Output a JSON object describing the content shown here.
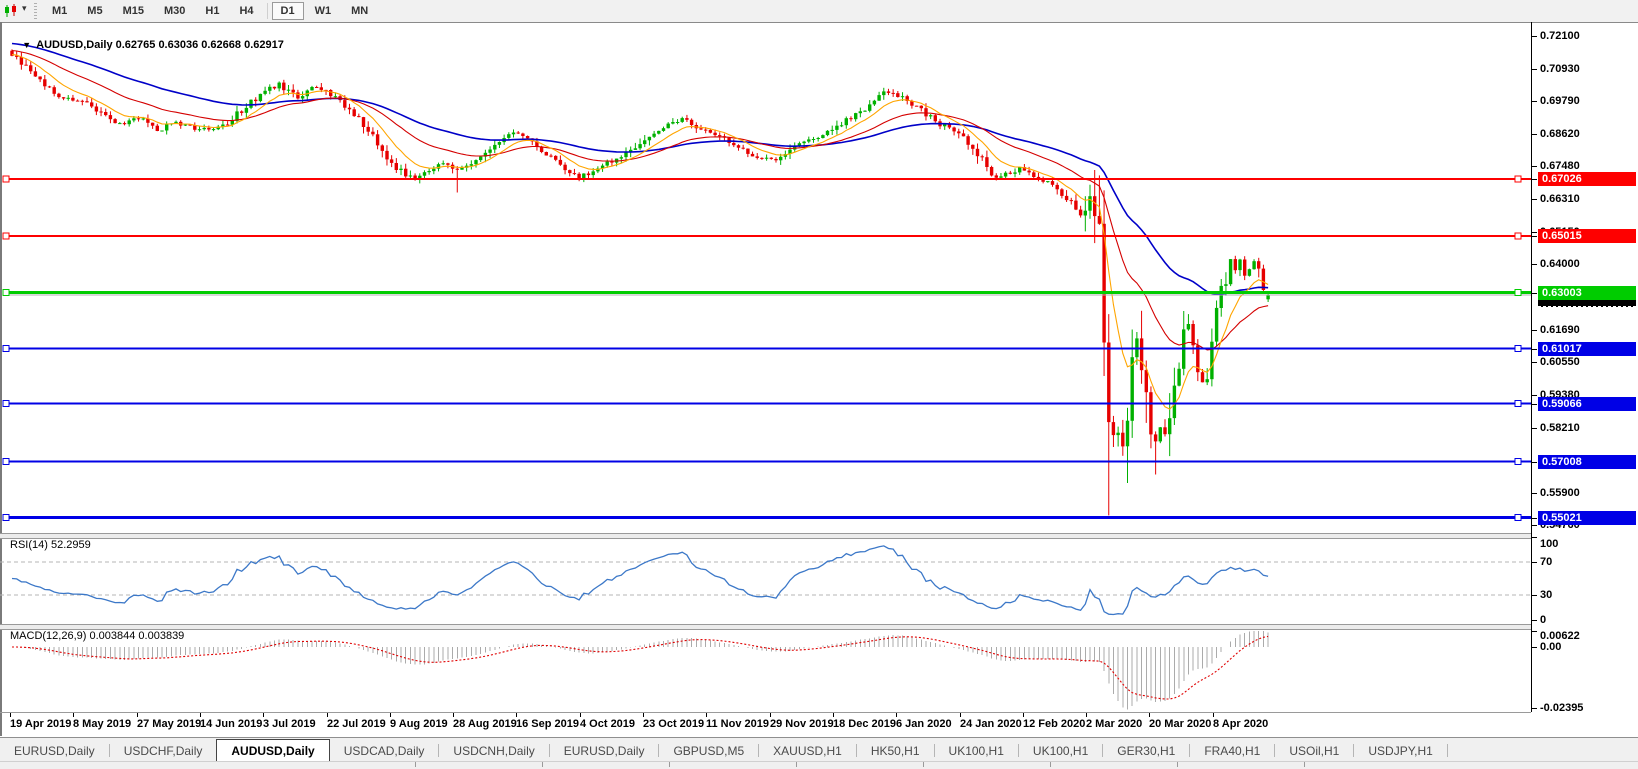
{
  "toolbar": {
    "chart_type_icon": "candlestick-chart-icon",
    "dropdown_glyph": "▾",
    "timeframes": [
      "M1",
      "M5",
      "M15",
      "M30",
      "H1",
      "H4",
      "D1",
      "W1",
      "MN"
    ],
    "active_timeframe": "D1"
  },
  "chart": {
    "title": {
      "marker": "▼",
      "symbol": "AUDUSD,Daily",
      "ohlc": "0.62765 0.63036 0.62668 0.62917"
    },
    "price_axis_labels": [
      "0.72100",
      "0.70930",
      "0.69790",
      "0.68620",
      "0.67480",
      "0.66310",
      "0.65150",
      "0.64000",
      "0.61690",
      "0.60550",
      "0.59380",
      "0.58210",
      "0.55900",
      "0.54760"
    ],
    "hlines": [
      {
        "label": "0.67026",
        "price": 0.67026,
        "color": "#fe0000",
        "thickness": 2
      },
      {
        "label": "0.65015",
        "price": 0.65015,
        "color": "#fe0000",
        "thickness": 2
      },
      {
        "label": "0.63003",
        "price": 0.63003,
        "color": "#00cc00",
        "thickness": 3
      },
      {
        "label": "0.61017",
        "price": 0.61017,
        "color": "#0000e6",
        "thickness": 2
      },
      {
        "label": "0.59066",
        "price": 0.59066,
        "color": "#0000e6",
        "thickness": 2
      },
      {
        "label": "0.57008",
        "price": 0.57008,
        "color": "#0000e6",
        "thickness": 2
      },
      {
        "label": "0.55021",
        "price": 0.55021,
        "color": "#0000e6",
        "thickness": 3
      }
    ],
    "date_axis_labels": [
      "19 Apr 2019",
      "8 May 2019",
      "27 May 2019",
      "14 Jun 2019",
      "3 Jul 2019",
      "22 Jul 2019",
      "9 Aug 2019",
      "28 Aug 2019",
      "16 Sep 2019",
      "4 Oct 2019",
      "23 Oct 2019",
      "11 Nov 2019",
      "29 Nov 2019",
      "18 Dec 2019",
      "6 Jan 2020",
      "24 Jan 2020",
      "12 Feb 2020",
      "2 Mar 2020",
      "20 Mar 2020",
      "8 Apr 2020"
    ]
  },
  "rsi_panel": {
    "name": "RSI(14)",
    "value": "52.2959",
    "axis_labels": [
      "100",
      "70",
      "30",
      "0"
    ],
    "level_lines": [
      70,
      30
    ],
    "line_color": "#3c78c8"
  },
  "macd_panel": {
    "name": "MACD(12,26,9)",
    "values": "0.003844 0.003839",
    "axis_labels": [
      "0.00622",
      "0.00",
      "-0.02395"
    ],
    "histogram_color": "#ababab",
    "signal_color": "#e00000"
  },
  "tabs": {
    "items": [
      "EURUSD,Daily",
      "USDCHF,Daily",
      "AUDUSD,Daily",
      "USDCAD,Daily",
      "USDCNH,Daily",
      "EURUSD,Daily",
      "GBPUSD,M5",
      "XAUUSD,H1",
      "HK50,H1",
      "UK100,H1",
      "UK100,H1",
      "GER30,H1",
      "FRA40,H1",
      "USOil,H1",
      "USDJPY,H1"
    ],
    "active_index": 2
  },
  "chart_data": {
    "type": "candlestick",
    "symbol": "AUDUSD",
    "timeframe": "Daily",
    "title": "AUDUSD,Daily",
    "visible_range": {
      "price_min": 0.5476,
      "price_max": 0.721,
      "date_start": "19 Apr 2019",
      "date_end": "8 Apr 2020"
    },
    "y_ticks": [
      0.721,
      0.7093,
      0.6979,
      0.6862,
      0.6748,
      0.6631,
      0.6515,
      0.64,
      0.6169,
      0.6055,
      0.5938,
      0.5821,
      0.559,
      0.5476
    ],
    "x_ticks": [
      "19 Apr 2019",
      "8 May 2019",
      "27 May 2019",
      "14 Jun 2019",
      "3 Jul 2019",
      "22 Jul 2019",
      "9 Aug 2019",
      "28 Aug 2019",
      "16 Sep 2019",
      "4 Oct 2019",
      "23 Oct 2019",
      "11 Nov 2019",
      "29 Nov 2019",
      "18 Dec 2019",
      "6 Jan 2020",
      "24 Jan 2020",
      "12 Feb 2020",
      "2 Mar 2020",
      "20 Mar 2020",
      "8 Apr 2020"
    ],
    "days": 268,
    "last_candle": {
      "o": 0.62765,
      "h": 0.63036,
      "l": 0.62668,
      "c": 0.62917
    },
    "current_price": 0.62917,
    "price_path": [
      [
        0,
        0.714
      ],
      [
        3,
        0.7095
      ],
      [
        7,
        0.703
      ],
      [
        11,
        0.699
      ],
      [
        15,
        0.6975
      ],
      [
        19,
        0.6935
      ],
      [
        23,
        0.6895
      ],
      [
        27,
        0.692
      ],
      [
        31,
        0.6875
      ],
      [
        35,
        0.6905
      ],
      [
        40,
        0.6875
      ],
      [
        45,
        0.689
      ],
      [
        50,
        0.696
      ],
      [
        54,
        0.7015
      ],
      [
        57,
        0.704
      ],
      [
        61,
        0.699
      ],
      [
        65,
        0.703
      ],
      [
        69,
        0.699
      ],
      [
        73,
        0.693
      ],
      [
        77,
        0.686
      ],
      [
        80,
        0.678
      ],
      [
        83,
        0.673
      ],
      [
        86,
        0.67
      ],
      [
        89,
        0.674
      ],
      [
        92,
        0.676
      ],
      [
        95,
        0.673
      ],
      [
        99,
        0.676
      ],
      [
        103,
        0.6815
      ],
      [
        107,
        0.6865
      ],
      [
        110,
        0.6845
      ],
      [
        114,
        0.679
      ],
      [
        118,
        0.6745
      ],
      [
        121,
        0.671
      ],
      [
        124,
        0.673
      ],
      [
        128,
        0.6765
      ],
      [
        132,
        0.68
      ],
      [
        136,
        0.685
      ],
      [
        140,
        0.689
      ],
      [
        143,
        0.6915
      ],
      [
        147,
        0.688
      ],
      [
        151,
        0.685
      ],
      [
        155,
        0.681
      ],
      [
        159,
        0.6785
      ],
      [
        163,
        0.6775
      ],
      [
        167,
        0.682
      ],
      [
        171,
        0.6845
      ],
      [
        175,
        0.688
      ],
      [
        179,
        0.6925
      ],
      [
        183,
        0.6965
      ],
      [
        187,
        0.7015
      ],
      [
        190,
        0.6995
      ],
      [
        194,
        0.6945
      ],
      [
        198,
        0.69
      ],
      [
        202,
        0.686
      ],
      [
        206,
        0.679
      ],
      [
        209,
        0.671
      ],
      [
        212,
        0.672
      ],
      [
        215,
        0.674
      ],
      [
        219,
        0.671
      ],
      [
        223,
        0.666
      ],
      [
        226,
        0.6615
      ],
      [
        228,
        0.658
      ],
      [
        230,
        0.6645
      ],
      [
        231,
        0.659
      ],
      [
        232,
        0.648
      ],
      [
        233,
        0.628
      ],
      [
        234,
        0.585
      ],
      [
        235,
        0.578
      ],
      [
        236,
        0.582
      ],
      [
        237,
        0.576
      ],
      [
        238,
        0.586
      ],
      [
        239,
        0.6
      ],
      [
        240,
        0.614
      ],
      [
        241,
        0.608
      ],
      [
        242,
        0.595
      ],
      [
        243,
        0.582
      ],
      [
        244,
        0.578
      ],
      [
        245,
        0.581
      ],
      [
        246,
        0.577
      ],
      [
        247,
        0.588
      ],
      [
        248,
        0.598
      ],
      [
        249,
        0.606
      ],
      [
        250,
        0.613
      ],
      [
        251,
        0.618
      ],
      [
        252,
        0.612
      ],
      [
        253,
        0.604
      ],
      [
        254,
        0.598
      ],
      [
        255,
        0.602
      ],
      [
        256,
        0.61
      ],
      [
        257,
        0.62
      ],
      [
        258,
        0.629
      ],
      [
        259,
        0.636
      ],
      [
        260,
        0.641
      ],
      [
        261,
        0.638
      ],
      [
        262,
        0.642
      ],
      [
        263,
        0.635
      ],
      [
        264,
        0.639
      ],
      [
        265,
        0.642
      ],
      [
        266,
        0.637
      ],
      [
        267,
        0.633
      ],
      [
        268,
        0.62917
      ]
    ],
    "special_lows": [
      {
        "day": 95,
        "low": 0.6655
      },
      {
        "day": 234,
        "low": 0.551
      },
      {
        "day": 244,
        "low": 0.5655
      }
    ],
    "candle_colors": {
      "up": "#00b000",
      "down": "#e60000"
    },
    "current_price_line_color": "#b0b0b0",
    "moving_averages": [
      {
        "name": "fast",
        "type": "ema",
        "period": 9,
        "color": "#ffa500"
      },
      {
        "name": "medium",
        "type": "ema",
        "period": 26,
        "color": "#d40000"
      },
      {
        "name": "slow",
        "type": "ema",
        "period": 55,
        "color": "#0000c8"
      }
    ],
    "horizontal_levels": [
      0.67026,
      0.65015,
      0.63003,
      0.61017,
      0.59066,
      0.57008,
      0.55021
    ],
    "indicators": {
      "rsi": {
        "period": 14,
        "current": 52.2959,
        "levels": [
          70,
          30
        ],
        "range": [
          0,
          100
        ]
      },
      "macd": {
        "fast": 12,
        "slow": 26,
        "signal": 9,
        "current_macd": 0.003844,
        "current_signal": 0.003839,
        "axis_max": 0.00622,
        "axis_min": -0.02395
      }
    }
  }
}
